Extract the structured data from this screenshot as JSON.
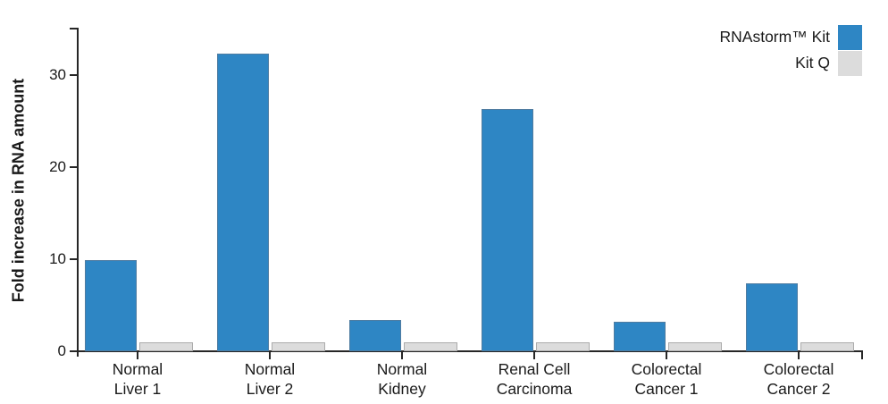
{
  "figure": {
    "background": "#ffffff",
    "axis_color": "#262626",
    "text_color": "#1a1a1a"
  },
  "chart_data": {
    "type": "bar",
    "title": "",
    "xlabel": "",
    "ylabel": "Fold increase in RNA amount",
    "categories": [
      "Normal Liver 1",
      "Normal Liver 2",
      "Normal Kidney",
      "Renal Cell Carcinoma",
      "Colorectal Cancer 1",
      "Colorectal Cancer 2"
    ],
    "category_lines": [
      [
        "Normal",
        "Liver 1"
      ],
      [
        "Normal",
        "Liver 2"
      ],
      [
        "Normal",
        "Kidney"
      ],
      [
        "Renal Cell",
        "Carcinoma"
      ],
      [
        "Colorectal",
        "Cancer 1"
      ],
      [
        "Colorectal",
        "Cancer 2"
      ]
    ],
    "series": [
      {
        "name": "RNAstorm™ Kit",
        "color": "#2e86c4",
        "border_color": "#4f7ca1",
        "values": [
          9.9,
          32.3,
          3.4,
          26.3,
          3.2,
          7.4
        ]
      },
      {
        "name": "Kit Q",
        "color": "#dcdcdc",
        "border_color": "#ababab",
        "values": [
          1,
          1,
          1,
          1,
          1,
          1
        ]
      }
    ],
    "yticks": [
      0,
      10,
      20,
      30
    ],
    "ylim": [
      0,
      35
    ],
    "grid": false,
    "legend_position": "top-right"
  }
}
